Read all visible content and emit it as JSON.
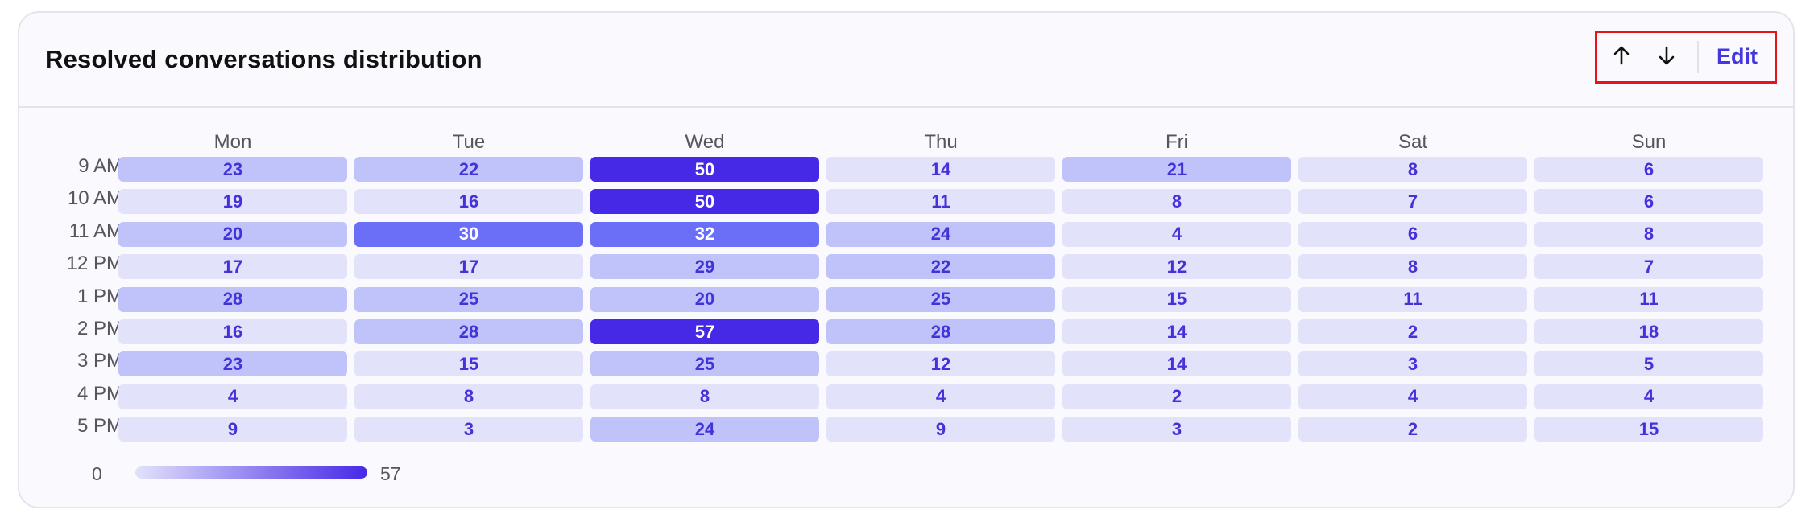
{
  "header": {
    "title": "Resolved conversations distribution",
    "edit_label": "Edit",
    "icons": [
      "arrow-up-icon",
      "arrow-down-icon"
    ]
  },
  "heatmap": {
    "days": [
      "Mon",
      "Tue",
      "Wed",
      "Thu",
      "Fri",
      "Sat",
      "Sun"
    ],
    "hours": [
      "9 AM",
      "10 AM",
      "11 AM",
      "12 PM",
      "1 PM",
      "2 PM",
      "3 PM",
      "4 PM",
      "5 PM"
    ],
    "values": [
      [
        23,
        22,
        50,
        14,
        21,
        8,
        6
      ],
      [
        19,
        16,
        50,
        11,
        8,
        7,
        6
      ],
      [
        20,
        30,
        32,
        24,
        4,
        6,
        8
      ],
      [
        17,
        17,
        29,
        22,
        12,
        8,
        7
      ],
      [
        28,
        25,
        20,
        25,
        15,
        11,
        11
      ],
      [
        16,
        28,
        57,
        28,
        14,
        2,
        18
      ],
      [
        23,
        15,
        25,
        12,
        14,
        3,
        5
      ],
      [
        4,
        8,
        8,
        4,
        2,
        4,
        4
      ],
      [
        9,
        3,
        24,
        9,
        3,
        2,
        15
      ]
    ],
    "legend_min": "0",
    "legend_max": "57"
  },
  "colors": {
    "accent": "#4536e0",
    "low": "#e2e2fb",
    "mid": "#c0c3f9",
    "high_mid": "#6b6ef7",
    "high": "#4529e7",
    "text_on_dark": "#ffffff",
    "text_on_light": "#4531d9"
  }
}
